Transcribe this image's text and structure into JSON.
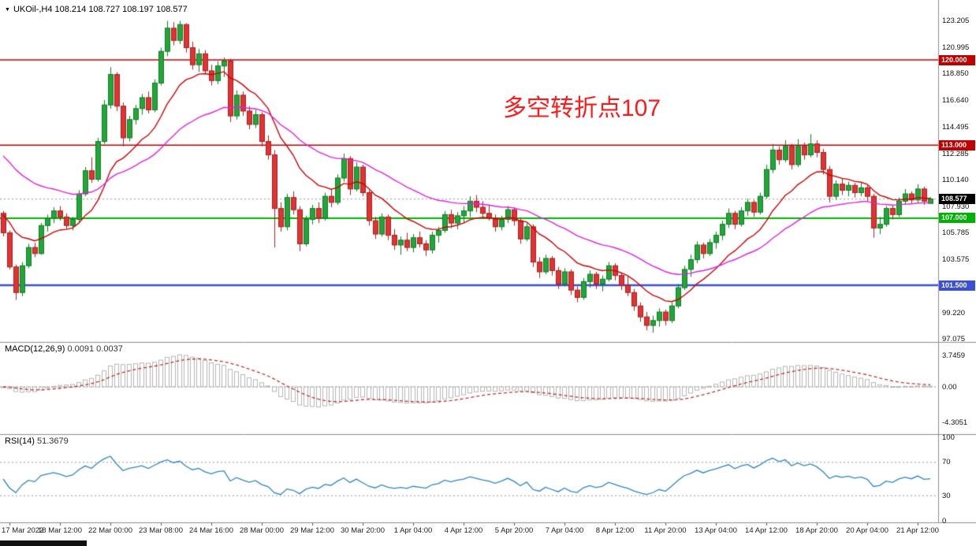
{
  "header": {
    "collapse_icon": "▼",
    "symbol_info": "UKOil-,H4  108.214 108.727 108.197 108.577"
  },
  "annotation": {
    "text": "多空转折点107",
    "color": "#ff1a1a"
  },
  "colors": {
    "up": "#22a63a",
    "up_border": "#0f7a24",
    "down": "#e23232",
    "down_border": "#a32020",
    "ma_fast": "#cc0000",
    "ma_slow": "#dd22dd",
    "macd_hist": "#b5b5b5",
    "macd_signal": "#c03030",
    "rsi_line": "#2e86c1",
    "last_price_line": "#999999",
    "last_price_badge_bg": "#000000",
    "separator": "#8c8c8c"
  },
  "chart_data": {
    "type": "candlestick",
    "symbol": "UKOil-",
    "timeframe": "H4",
    "current_ohlc": {
      "open": 108.214,
      "high": 108.727,
      "low": 108.197,
      "close": 108.577
    },
    "last_price": 108.577,
    "last_price_label": "108.577",
    "y_axis_labels": [
      "123.205",
      "120.995",
      "118.850",
      "116.640",
      "114.495",
      "112.285",
      "110.140",
      "107.930",
      "105.785",
      "103.575",
      "99.220",
      "97.075"
    ],
    "level_lines": [
      {
        "price": 120.0,
        "label": "120.000",
        "color": "#c00000",
        "width": 1.4
      },
      {
        "price": 113.0,
        "label": "113.000",
        "color": "#c00000",
        "width": 1.6
      },
      {
        "price": 107.0,
        "label": "107.000",
        "color": "#00b300",
        "width": 2.2
      },
      {
        "price": 101.5,
        "label": "101.500",
        "color": "#3a4fd6",
        "width": 2.6
      }
    ],
    "moving_averages": [
      {
        "name": "fast-ma",
        "color": "#cc0000",
        "period": 13,
        "seed": 107.5
      },
      {
        "name": "slow-ma",
        "color": "#dd22dd",
        "period": 34,
        "seed": 112.5
      }
    ],
    "candles": [
      [
        107.4,
        107.6,
        105.5,
        105.8
      ],
      [
        105.8,
        106.0,
        102.8,
        103.0
      ],
      [
        103.0,
        103.2,
        100.3,
        100.9
      ],
      [
        100.9,
        103.4,
        100.6,
        103.1
      ],
      [
        103.1,
        104.9,
        102.9,
        104.6
      ],
      [
        104.6,
        105.0,
        103.8,
        104.1
      ],
      [
        104.1,
        106.6,
        104.0,
        106.4
      ],
      [
        106.4,
        107.3,
        105.9,
        107.0
      ],
      [
        107.0,
        107.9,
        106.6,
        107.6
      ],
      [
        107.6,
        108.0,
        106.8,
        107.1
      ],
      [
        107.1,
        107.4,
        106.1,
        106.4
      ],
      [
        106.4,
        107.1,
        106.0,
        106.9
      ],
      [
        106.9,
        109.3,
        106.7,
        109.0
      ],
      [
        109.0,
        111.2,
        108.8,
        110.9
      ],
      [
        110.9,
        112.0,
        109.9,
        110.2
      ],
      [
        110.2,
        113.6,
        110.0,
        113.3
      ],
      [
        113.3,
        116.7,
        113.1,
        116.3
      ],
      [
        116.3,
        119.4,
        116.0,
        118.8
      ],
      [
        118.8,
        119.0,
        115.8,
        116.2
      ],
      [
        116.2,
        116.5,
        112.9,
        113.6
      ],
      [
        113.6,
        115.4,
        113.3,
        115.1
      ],
      [
        115.1,
        116.3,
        114.7,
        116.0
      ],
      [
        116.0,
        117.2,
        115.5,
        116.9
      ],
      [
        116.9,
        117.4,
        115.6,
        115.9
      ],
      [
        115.9,
        118.4,
        115.7,
        118.1
      ],
      [
        118.1,
        121.0,
        117.9,
        120.7
      ],
      [
        120.7,
        123.2,
        120.3,
        122.6
      ],
      [
        122.6,
        123.1,
        121.2,
        121.6
      ],
      [
        121.6,
        123.2,
        121.3,
        122.9
      ],
      [
        122.9,
        123.0,
        120.6,
        121.0
      ],
      [
        121.0,
        121.5,
        119.2,
        119.6
      ],
      [
        119.6,
        120.9,
        119.0,
        120.5
      ],
      [
        120.5,
        120.8,
        118.8,
        119.1
      ],
      [
        119.1,
        119.6,
        117.9,
        118.3
      ],
      [
        118.3,
        119.9,
        118.0,
        119.5
      ],
      [
        119.5,
        120.2,
        118.6,
        119.9
      ],
      [
        119.9,
        120.1,
        114.9,
        115.4
      ],
      [
        115.4,
        117.5,
        115.1,
        117.1
      ],
      [
        117.1,
        117.4,
        115.4,
        115.8
      ],
      [
        115.8,
        116.2,
        114.3,
        114.7
      ],
      [
        114.7,
        115.9,
        114.4,
        115.5
      ],
      [
        115.5,
        115.7,
        112.9,
        113.3
      ],
      [
        113.3,
        113.8,
        111.8,
        112.2
      ],
      [
        112.2,
        112.6,
        104.6,
        107.8
      ],
      [
        107.8,
        108.3,
        105.9,
        106.3
      ],
      [
        106.3,
        109.0,
        106.0,
        108.7
      ],
      [
        108.7,
        109.2,
        107.3,
        107.7
      ],
      [
        107.7,
        108.0,
        104.3,
        104.9
      ],
      [
        104.9,
        107.2,
        104.7,
        106.9
      ],
      [
        106.9,
        108.1,
        106.5,
        107.8
      ],
      [
        107.8,
        108.3,
        106.6,
        107.0
      ],
      [
        107.0,
        109.1,
        106.8,
        108.8
      ],
      [
        108.8,
        109.4,
        107.9,
        108.3
      ],
      [
        108.3,
        110.6,
        108.1,
        110.3
      ],
      [
        110.3,
        112.3,
        110.0,
        111.9
      ],
      [
        111.9,
        112.1,
        108.9,
        109.4
      ],
      [
        109.4,
        111.6,
        109.2,
        111.2
      ],
      [
        111.2,
        111.4,
        108.8,
        109.1
      ],
      [
        109.1,
        109.3,
        106.4,
        106.8
      ],
      [
        106.8,
        107.1,
        105.3,
        105.7
      ],
      [
        105.7,
        107.4,
        105.5,
        107.1
      ],
      [
        107.1,
        107.3,
        105.2,
        105.6
      ],
      [
        105.6,
        106.1,
        104.4,
        104.8
      ],
      [
        104.8,
        105.5,
        104.0,
        105.2
      ],
      [
        105.2,
        105.8,
        104.3,
        104.6
      ],
      [
        104.6,
        105.7,
        104.2,
        105.4
      ],
      [
        105.4,
        105.9,
        104.6,
        104.9
      ],
      [
        104.9,
        105.2,
        103.9,
        104.4
      ],
      [
        104.4,
        105.9,
        104.1,
        105.6
      ],
      [
        105.6,
        106.3,
        105.0,
        106.0
      ],
      [
        106.0,
        107.6,
        105.8,
        107.3
      ],
      [
        107.3,
        107.7,
        106.2,
        106.6
      ],
      [
        106.6,
        107.5,
        106.1,
        107.2
      ],
      [
        107.2,
        108.0,
        106.6,
        107.6
      ],
      [
        107.6,
        108.8,
        107.1,
        108.4
      ],
      [
        108.4,
        108.9,
        107.5,
        107.9
      ],
      [
        107.9,
        108.4,
        107.0,
        107.4
      ],
      [
        107.4,
        108.1,
        106.8,
        107.0
      ],
      [
        107.0,
        107.3,
        105.9,
        106.3
      ],
      [
        106.3,
        107.2,
        106.0,
        106.9
      ],
      [
        106.9,
        108.0,
        106.6,
        107.7
      ],
      [
        107.7,
        107.9,
        106.4,
        106.8
      ],
      [
        106.8,
        107.0,
        104.9,
        105.3
      ],
      [
        105.3,
        106.6,
        105.1,
        106.3
      ],
      [
        106.3,
        106.5,
        103.0,
        103.4
      ],
      [
        103.4,
        103.8,
        102.1,
        102.6
      ],
      [
        102.6,
        104.0,
        102.4,
        103.7
      ],
      [
        103.7,
        103.9,
        102.3,
        102.7
      ],
      [
        102.7,
        103.0,
        101.2,
        101.6
      ],
      [
        101.6,
        102.9,
        101.4,
        102.6
      ],
      [
        102.6,
        102.8,
        100.7,
        101.1
      ],
      [
        101.1,
        101.4,
        100.1,
        100.5
      ],
      [
        100.5,
        102.1,
        100.3,
        101.8
      ],
      [
        101.8,
        102.7,
        101.3,
        102.4
      ],
      [
        102.4,
        102.6,
        101.2,
        101.6
      ],
      [
        101.6,
        102.3,
        101.0,
        102.0
      ],
      [
        102.0,
        103.4,
        101.8,
        103.1
      ],
      [
        103.1,
        103.3,
        101.9,
        102.3
      ],
      [
        102.3,
        102.5,
        101.1,
        101.5
      ],
      [
        101.5,
        102.2,
        100.6,
        100.9
      ],
      [
        100.9,
        101.2,
        99.4,
        99.8
      ],
      [
        99.8,
        100.1,
        98.5,
        98.9
      ],
      [
        98.9,
        99.3,
        97.8,
        98.2
      ],
      [
        98.2,
        99.0,
        97.6,
        98.6
      ],
      [
        98.6,
        99.6,
        98.1,
        99.3
      ],
      [
        99.3,
        99.5,
        98.2,
        98.6
      ],
      [
        98.6,
        100.1,
        98.4,
        99.8
      ],
      [
        99.8,
        101.6,
        99.6,
        101.3
      ],
      [
        101.3,
        103.1,
        101.1,
        102.8
      ],
      [
        102.8,
        104.0,
        102.2,
        103.6
      ],
      [
        103.6,
        105.1,
        103.3,
        104.8
      ],
      [
        104.8,
        105.0,
        103.7,
        104.1
      ],
      [
        104.1,
        105.3,
        103.9,
        105.0
      ],
      [
        105.0,
        105.9,
        104.5,
        105.6
      ],
      [
        105.6,
        106.8,
        105.2,
        106.5
      ],
      [
        106.5,
        107.8,
        106.2,
        107.4
      ],
      [
        107.4,
        107.6,
        106.1,
        106.5
      ],
      [
        106.5,
        107.9,
        106.3,
        107.6
      ],
      [
        107.6,
        108.6,
        107.2,
        108.3
      ],
      [
        108.3,
        108.5,
        107.1,
        107.5
      ],
      [
        107.5,
        109.1,
        107.3,
        108.8
      ],
      [
        108.8,
        111.4,
        108.6,
        111.0
      ],
      [
        111.0,
        113.1,
        110.7,
        112.6
      ],
      [
        112.6,
        112.9,
        111.4,
        111.8
      ],
      [
        111.8,
        113.4,
        111.6,
        112.9
      ],
      [
        112.9,
        113.1,
        111.0,
        111.4
      ],
      [
        111.4,
        113.5,
        111.2,
        112.9
      ],
      [
        112.9,
        113.2,
        111.8,
        112.2
      ],
      [
        112.2,
        113.9,
        112.0,
        113.1
      ],
      [
        113.1,
        113.4,
        112.0,
        112.4
      ],
      [
        112.4,
        112.7,
        110.6,
        111.0
      ],
      [
        111.0,
        111.3,
        108.3,
        108.8
      ],
      [
        108.8,
        110.1,
        108.5,
        109.8
      ],
      [
        109.8,
        110.3,
        108.9,
        109.3
      ],
      [
        109.3,
        110.0,
        108.8,
        109.7
      ],
      [
        109.7,
        109.9,
        108.7,
        109.1
      ],
      [
        109.1,
        109.9,
        108.8,
        109.5
      ],
      [
        109.5,
        109.7,
        108.4,
        108.8
      ],
      [
        108.8,
        109.0,
        105.4,
        106.2
      ],
      [
        106.2,
        107.1,
        105.7,
        106.5
      ],
      [
        106.5,
        108.0,
        106.3,
        107.8
      ],
      [
        107.8,
        108.1,
        106.9,
        107.3
      ],
      [
        107.3,
        108.7,
        107.1,
        108.4
      ],
      [
        108.4,
        109.4,
        108.1,
        109.0
      ],
      [
        109.0,
        109.2,
        108.2,
        108.5
      ],
      [
        108.5,
        109.8,
        108.3,
        109.4
      ],
      [
        109.4,
        109.6,
        108.1,
        108.4
      ],
      [
        108.214,
        108.727,
        108.197,
        108.577
      ]
    ],
    "time_labels": [
      {
        "i": 1,
        "t": "17 Mar 2022"
      },
      {
        "i": 9,
        "t": "18 Mar 12:00"
      },
      {
        "i": 17,
        "t": "22 Mar 00:00"
      },
      {
        "i": 25,
        "t": "23 Mar 08:00"
      },
      {
        "i": 33,
        "t": "24 Mar 16:00"
      },
      {
        "i": 41,
        "t": "28 Mar 00:00"
      },
      {
        "i": 49,
        "t": "29 Mar 12:00"
      },
      {
        "i": 57,
        "t": "30 Mar 20:00"
      },
      {
        "i": 65,
        "t": "1 Apr 04:00"
      },
      {
        "i": 73,
        "t": "4 Apr 12:00"
      },
      {
        "i": 81,
        "t": "5 Apr 20:00"
      },
      {
        "i": 89,
        "t": "7 Apr 04:00"
      },
      {
        "i": 97,
        "t": "8 Apr 12:00"
      },
      {
        "i": 105,
        "t": "11 Apr 20:00"
      },
      {
        "i": 113,
        "t": "13 Apr 04:00"
      },
      {
        "i": 121,
        "t": "14 Apr 12:00"
      },
      {
        "i": 129,
        "t": "18 Apr 20:00"
      },
      {
        "i": 137,
        "t": "20 Apr 04:00"
      },
      {
        "i": 145,
        "t": "21 Apr 12:00"
      }
    ],
    "macd": {
      "label": "MACD(12,26,9)",
      "display_values": "0.0091 0.0037",
      "params": [
        12,
        26,
        9
      ],
      "axis_labels": [
        "3.7459",
        "0.00",
        "-4.3051"
      ]
    },
    "rsi": {
      "label": "RSI(14)",
      "display_value": "51.3679",
      "period": 14,
      "levels": [
        70,
        30
      ],
      "axis_labels": [
        "100",
        "70",
        "30",
        "0"
      ]
    }
  }
}
